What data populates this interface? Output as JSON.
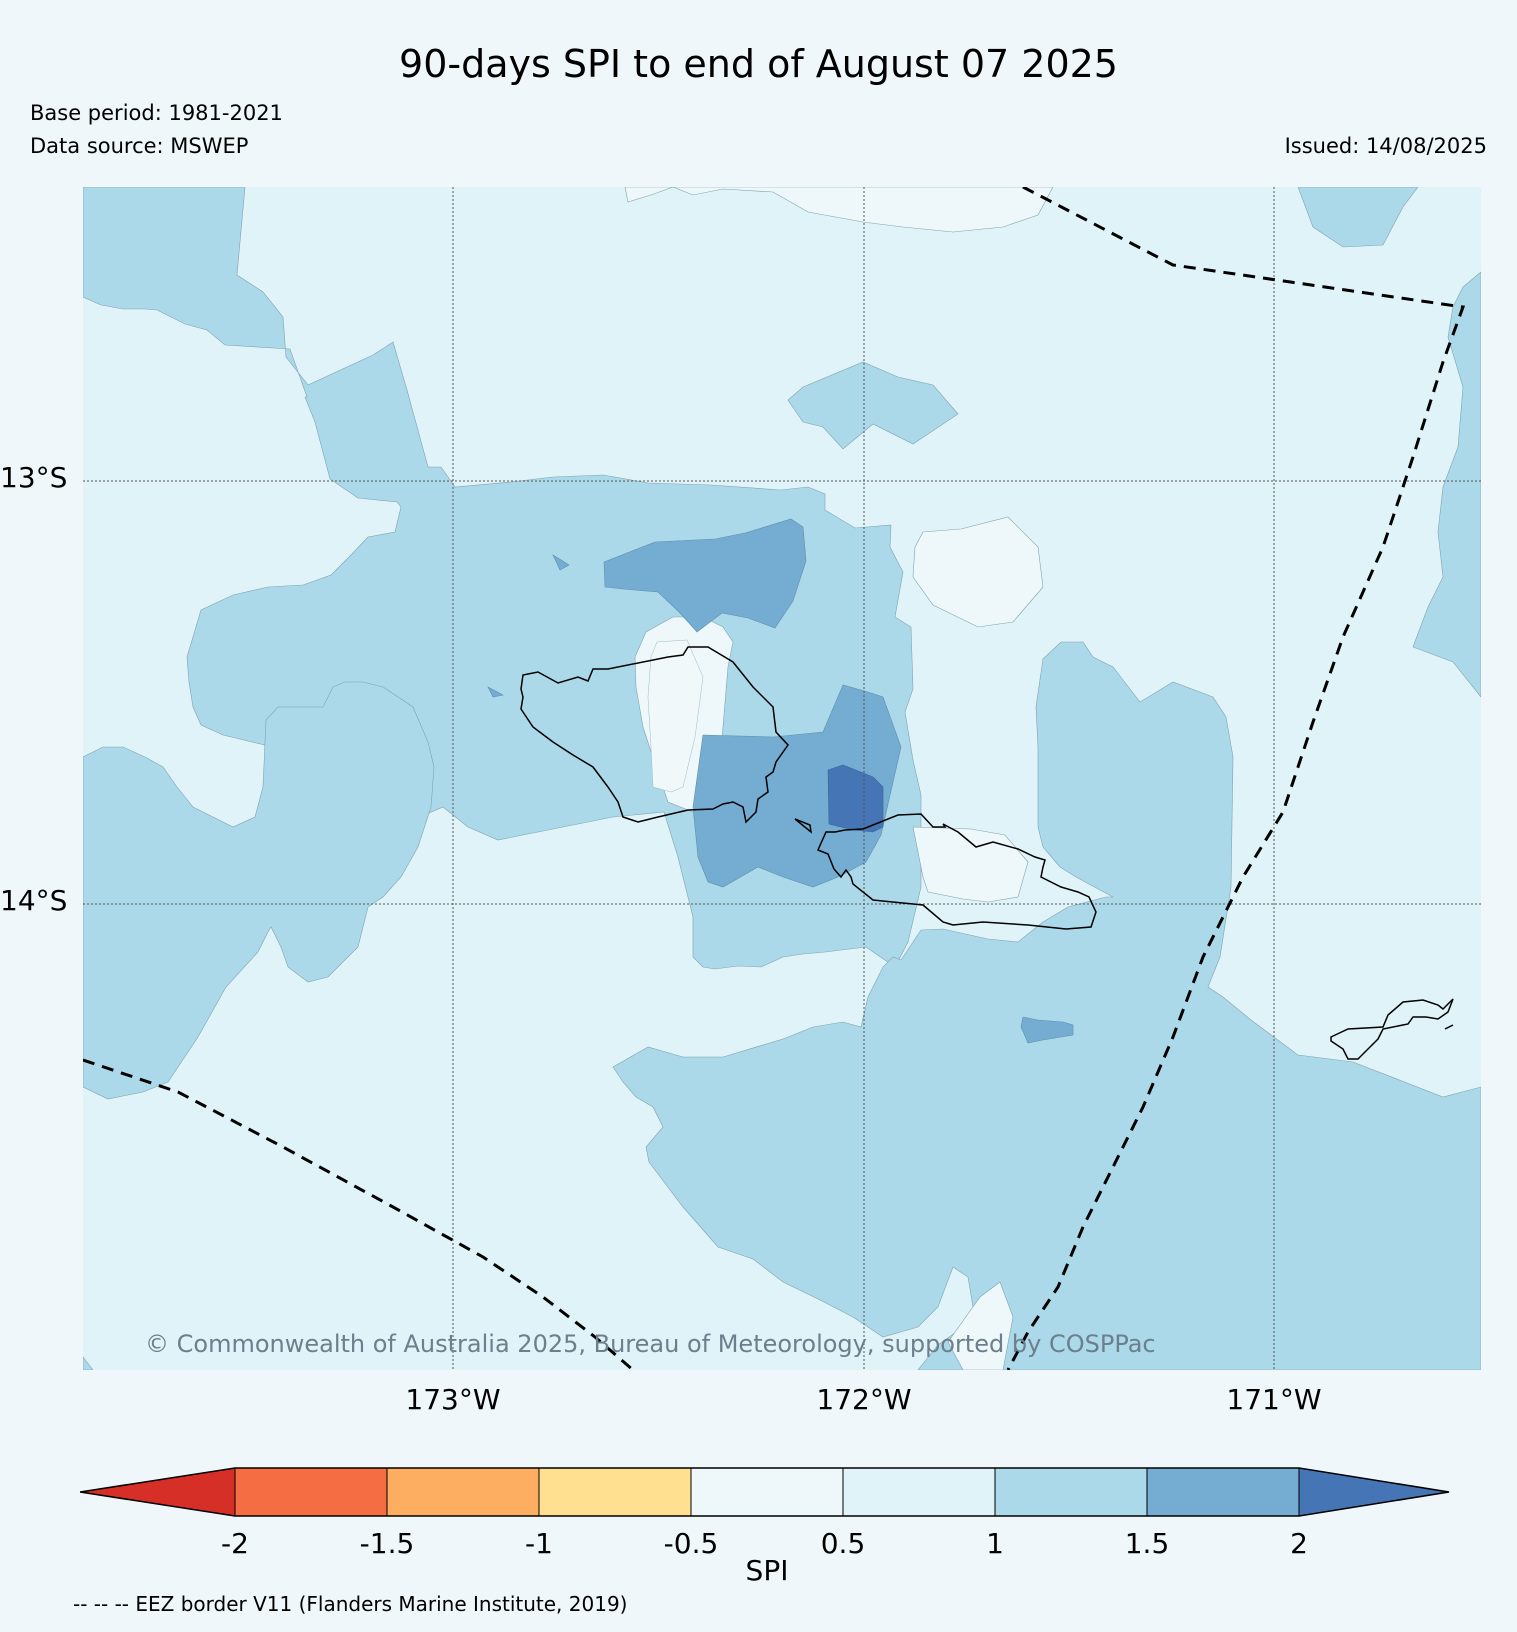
{
  "title": "90-days SPI to end of August 07 2025",
  "base_period": "Base period: 1981-2021",
  "data_source": "Data source: MSWEP",
  "issued": "Issued: 14/08/2025",
  "copyright": "© Commonwealth of Australia 2025, Bureau of Meteorology, supported by COSPPac",
  "lat_labels": [
    "13°S",
    "14°S"
  ],
  "lon_labels": [
    "173°W",
    "172°W",
    "171°W"
  ],
  "colorbar": {
    "label": "SPI",
    "ticks": [
      "-2",
      "-1.5",
      "-1",
      "-0.5",
      "0.5",
      "1",
      "1.5",
      "2"
    ],
    "colors": [
      "#d62f27",
      "#f46d43",
      "#fdae61",
      "#fee090",
      "#eef7fa",
      "#e0f3f8",
      "#abd9e9",
      "#74add1",
      "#4575b4"
    ]
  },
  "eez_legend": "-- -- -- EEZ border V11 (Flanders Marine Institute, 2019)"
}
